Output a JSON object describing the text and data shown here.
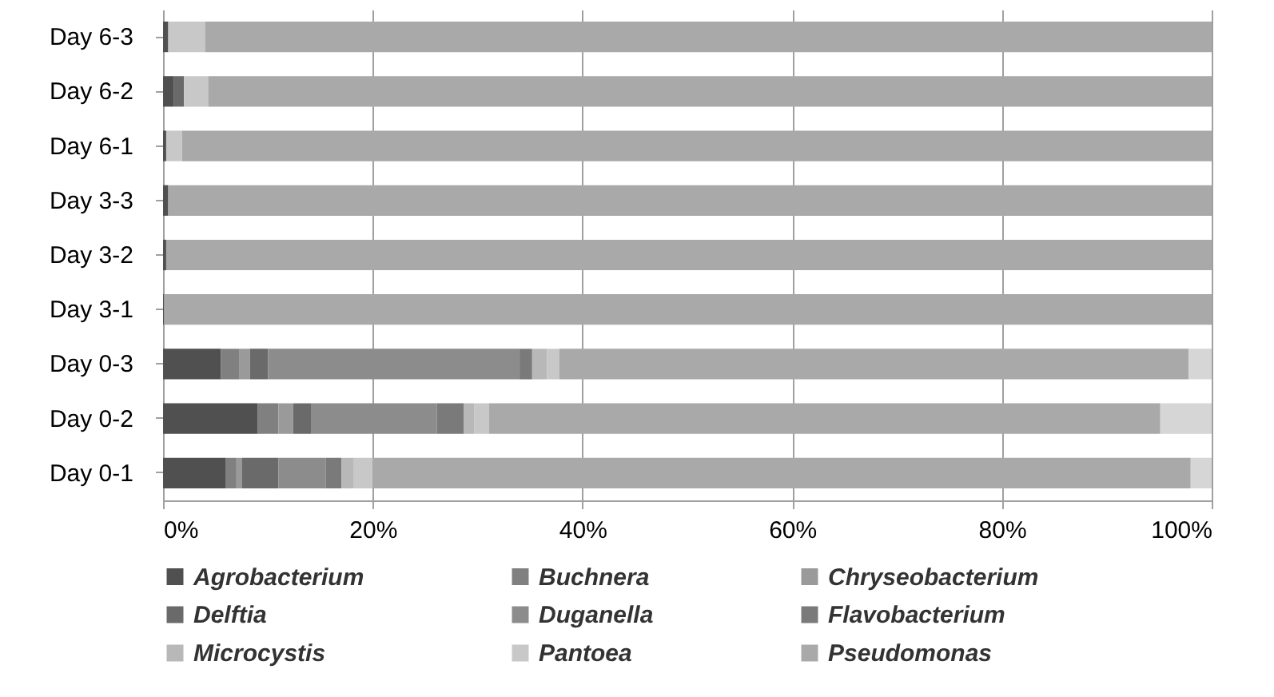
{
  "chart_data": {
    "type": "bar",
    "orientation": "horizontal",
    "stacked": true,
    "categories": [
      "Day 6-3",
      "Day 6-2",
      "Day 6-1",
      "Day 3-3",
      "Day 3-2",
      "Day 3-1",
      "Day 0-3",
      "Day 0-2",
      "Day 0-1"
    ],
    "series": [
      {
        "name": "Agrobacterium",
        "color": "#505050",
        "values": [
          0.5,
          1,
          0.3,
          0.5,
          0.3,
          0.1,
          5.5,
          9,
          6
        ]
      },
      {
        "name": "Buchnera",
        "color": "#808080",
        "values": [
          0,
          0,
          0,
          0,
          0,
          0,
          1.8,
          2,
          1
        ]
      },
      {
        "name": "Chryseobacterium",
        "color": "#9a9a9a",
        "values": [
          0,
          0,
          0,
          0,
          0,
          0,
          1,
          1.4,
          0.5
        ]
      },
      {
        "name": "Delftia",
        "color": "#6a6a6a",
        "values": [
          0,
          1,
          0,
          0,
          0,
          0,
          1.7,
          1.7,
          3.5
        ]
      },
      {
        "name": "Duganella",
        "color": "#8c8c8c",
        "values": [
          0,
          0,
          0,
          0,
          0,
          0,
          24,
          12,
          4.5
        ]
      },
      {
        "name": "Flavobacterium",
        "color": "#7a7a7a",
        "values": [
          0,
          0,
          0,
          0,
          0,
          0,
          1.2,
          2.6,
          1.5
        ]
      },
      {
        "name": "Microcystis",
        "color": "#b8b8b8",
        "values": [
          0,
          0,
          0,
          0,
          0,
          0,
          1.4,
          1,
          1.2
        ]
      },
      {
        "name": "Pantoea",
        "color": "#c8c8c8",
        "values": [
          3.5,
          2.3,
          1.5,
          0,
          0,
          0,
          1.2,
          1.4,
          1.8
        ]
      },
      {
        "name": "Pseudomonas",
        "color": "#a9a9a9",
        "values": [
          96,
          95.7,
          98.2,
          99.5,
          99.7,
          99.9,
          60,
          64,
          78
        ]
      },
      {
        "color": "#d6d6d6",
        "values": [
          0,
          0,
          0,
          0,
          0,
          0,
          2.2,
          4.9,
          2
        ]
      }
    ],
    "xlim": [
      0,
      100
    ],
    "xticks": [
      {
        "value": 0,
        "label": "0%"
      },
      {
        "value": 20,
        "label": "20%"
      },
      {
        "value": 40,
        "label": "40%"
      },
      {
        "value": 60,
        "label": "60%"
      },
      {
        "value": 80,
        "label": "80%"
      },
      {
        "value": 100,
        "label": "100%"
      }
    ],
    "grid": "x",
    "legend": "bottom"
  }
}
